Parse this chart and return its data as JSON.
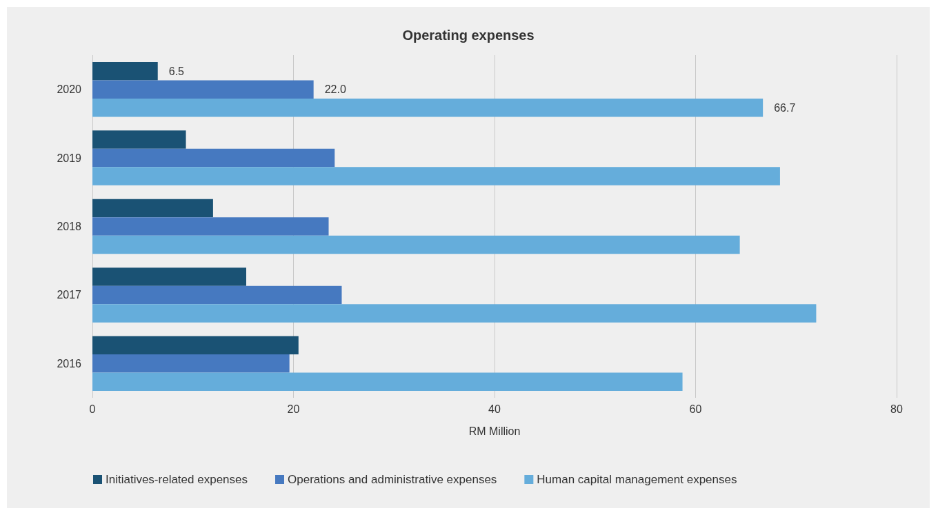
{
  "chart_data": {
    "type": "bar",
    "orientation": "horizontal",
    "title": "Operating expenses",
    "xlabel": "RM Million",
    "categories": [
      "2020",
      "2019",
      "2018",
      "2017",
      "2016"
    ],
    "series": [
      {
        "name": "Initiatives-related expenses",
        "color": "#1a5274",
        "values": [
          6.5,
          9.3,
          12.0,
          15.3,
          20.5
        ],
        "value_labels": [
          "6.5",
          null,
          null,
          null,
          null
        ]
      },
      {
        "name": "Operations and administrative expenses",
        "color": "#4679c0",
        "values": [
          22.0,
          24.1,
          23.5,
          24.8,
          19.6
        ],
        "value_labels": [
          "22.0",
          null,
          null,
          null,
          null
        ]
      },
      {
        "name": "Human capital management expenses",
        "color": "#65addb",
        "values": [
          66.7,
          68.4,
          64.4,
          72.0,
          58.7
        ],
        "value_labels": [
          "66.7",
          null,
          null,
          null,
          null
        ]
      }
    ],
    "xlim": [
      0,
      80
    ],
    "xticks": [
      0,
      20,
      40,
      60,
      80
    ],
    "grid": "x",
    "legend": "bottom"
  }
}
